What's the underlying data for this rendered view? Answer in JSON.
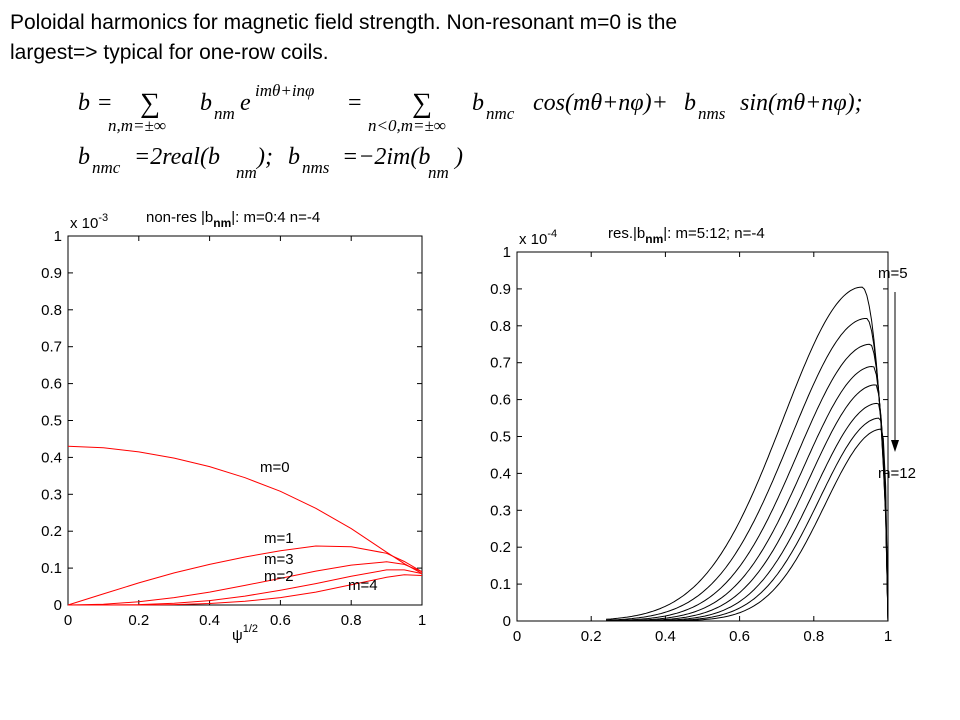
{
  "caption": {
    "line1": "Poloidal harmonics for magnetic field strength. Non-resonant m=0 is the",
    "line2": "largest=> typical for one-row coils."
  },
  "equations": {
    "b": "b",
    "eq": "=",
    "sum": "∑",
    "sum1_sub": "n,m=±∞",
    "term1_main": "b",
    "term1_sub": "nm",
    "term1_exp": "e",
    "term1_sup": "imθ+inφ",
    "sum2_sub": "n<0,m=±∞",
    "bnmc": "b",
    "bnmc_sub": "nmc",
    "cos_part": "cos(mθ+nφ)+",
    "bnms": "b",
    "bnms_sub": "nms",
    "sin_part": "sin(mθ+nφ);",
    "line2_a_lhs": "b",
    "line2_a_sub": "nmc",
    "line2_a_rhs": "=2real(b",
    "line2_a_sub2": "nm",
    "line2_a_end": ");",
    "line2_b_lhs": "b",
    "line2_b_sub": "nms",
    "line2_b_rhs": "=−2im(b",
    "line2_b_sub2": "nm",
    "line2_b_end": ")"
  },
  "chart_data": [
    {
      "type": "line",
      "title": "non-res |bnm|: m=0:4 n=-4",
      "title_parts": {
        "pre": "non-res |b",
        "sub": "nm",
        "post": "|: m=0:4 n=-4"
      },
      "xlabel": "ψ^1/2",
      "xlabel_parts": {
        "base": "ψ",
        "sup": "1/2"
      },
      "ylabel": "",
      "scale_label": {
        "base": "x 10",
        "exp": "-3"
      },
      "xlim": [
        0,
        1
      ],
      "ylim": [
        0,
        1
      ],
      "xticks": [
        "0",
        "0.2",
        "0.4",
        "0.6",
        "0.8",
        "1"
      ],
      "yticks": [
        "0",
        "0.1",
        "0.2",
        "0.3",
        "0.4",
        "0.5",
        "0.6",
        "0.7",
        "0.8",
        "0.9",
        "1"
      ],
      "color": "#ff0000",
      "series": [
        {
          "name": "m=0",
          "x": [
            0,
            0.1,
            0.2,
            0.3,
            0.4,
            0.5,
            0.6,
            0.7,
            0.8,
            0.9,
            0.95,
            1.0
          ],
          "y": [
            0.43,
            0.426,
            0.415,
            0.398,
            0.375,
            0.345,
            0.308,
            0.262,
            0.207,
            0.143,
            0.112,
            0.085
          ]
        },
        {
          "name": "m=1",
          "x": [
            0,
            0.1,
            0.2,
            0.3,
            0.4,
            0.5,
            0.6,
            0.7,
            0.8,
            0.9,
            0.95,
            1.0
          ],
          "y": [
            0,
            0.03,
            0.06,
            0.087,
            0.11,
            0.13,
            0.147,
            0.16,
            0.158,
            0.14,
            0.118,
            0.09
          ]
        },
        {
          "name": "m=2",
          "x": [
            0,
            0.1,
            0.2,
            0.3,
            0.4,
            0.5,
            0.6,
            0.7,
            0.8,
            0.9,
            0.95,
            1.0
          ],
          "y": [
            0,
            0.002,
            0.009,
            0.02,
            0.035,
            0.053,
            0.072,
            0.092,
            0.108,
            0.117,
            0.11,
            0.09
          ]
        },
        {
          "name": "m=3",
          "x": [
            0,
            0.1,
            0.2,
            0.3,
            0.4,
            0.5,
            0.6,
            0.7,
            0.8,
            0.9,
            0.95,
            1.0
          ],
          "y": [
            0,
            0,
            0.001,
            0.005,
            0.012,
            0.024,
            0.04,
            0.058,
            0.078,
            0.095,
            0.095,
            0.085
          ]
        },
        {
          "name": "m=4",
          "x": [
            0,
            0.1,
            0.2,
            0.3,
            0.4,
            0.5,
            0.6,
            0.7,
            0.8,
            0.9,
            0.95,
            1.0
          ],
          "y": [
            0,
            0,
            0,
            0.001,
            0.004,
            0.01,
            0.02,
            0.035,
            0.055,
            0.075,
            0.082,
            0.08
          ]
        }
      ],
      "annotations": [
        "m=0",
        "m=1",
        "m=3",
        "m=2",
        "m=4"
      ]
    },
    {
      "type": "line",
      "title": "res.|bnm|: m=5:12; n=-4",
      "title_parts": {
        "pre": "res.|b",
        "sub": "nm",
        "post": "|: m=5:12; n=-4"
      },
      "xlabel": "",
      "ylabel": "",
      "scale_label": {
        "base": "x 10",
        "exp": "-4"
      },
      "xlim": [
        0,
        1
      ],
      "ylim": [
        0,
        1
      ],
      "xticks": [
        "0",
        "0.2",
        "0.4",
        "0.6",
        "0.8",
        "1"
      ],
      "yticks": [
        "0",
        "0.1",
        "0.2",
        "0.3",
        "0.4",
        "0.5",
        "0.6",
        "0.7",
        "0.8",
        "0.9",
        "1"
      ],
      "color": "#000000",
      "series": [
        {
          "m": 5,
          "peak": 0.905,
          "peak_x": 0.93
        },
        {
          "m": 6,
          "peak": 0.82,
          "peak_x": 0.942
        },
        {
          "m": 7,
          "peak": 0.75,
          "peak_x": 0.952
        },
        {
          "m": 8,
          "peak": 0.69,
          "peak_x": 0.96
        },
        {
          "m": 9,
          "peak": 0.64,
          "peak_x": 0.967
        },
        {
          "m": 10,
          "peak": 0.59,
          "peak_x": 0.973
        },
        {
          "m": 11,
          "peak": 0.55,
          "peak_x": 0.978
        },
        {
          "m": 12,
          "peak": 0.52,
          "peak_x": 0.983
        }
      ],
      "annotations": [
        "m=5",
        "m=12"
      ]
    }
  ]
}
